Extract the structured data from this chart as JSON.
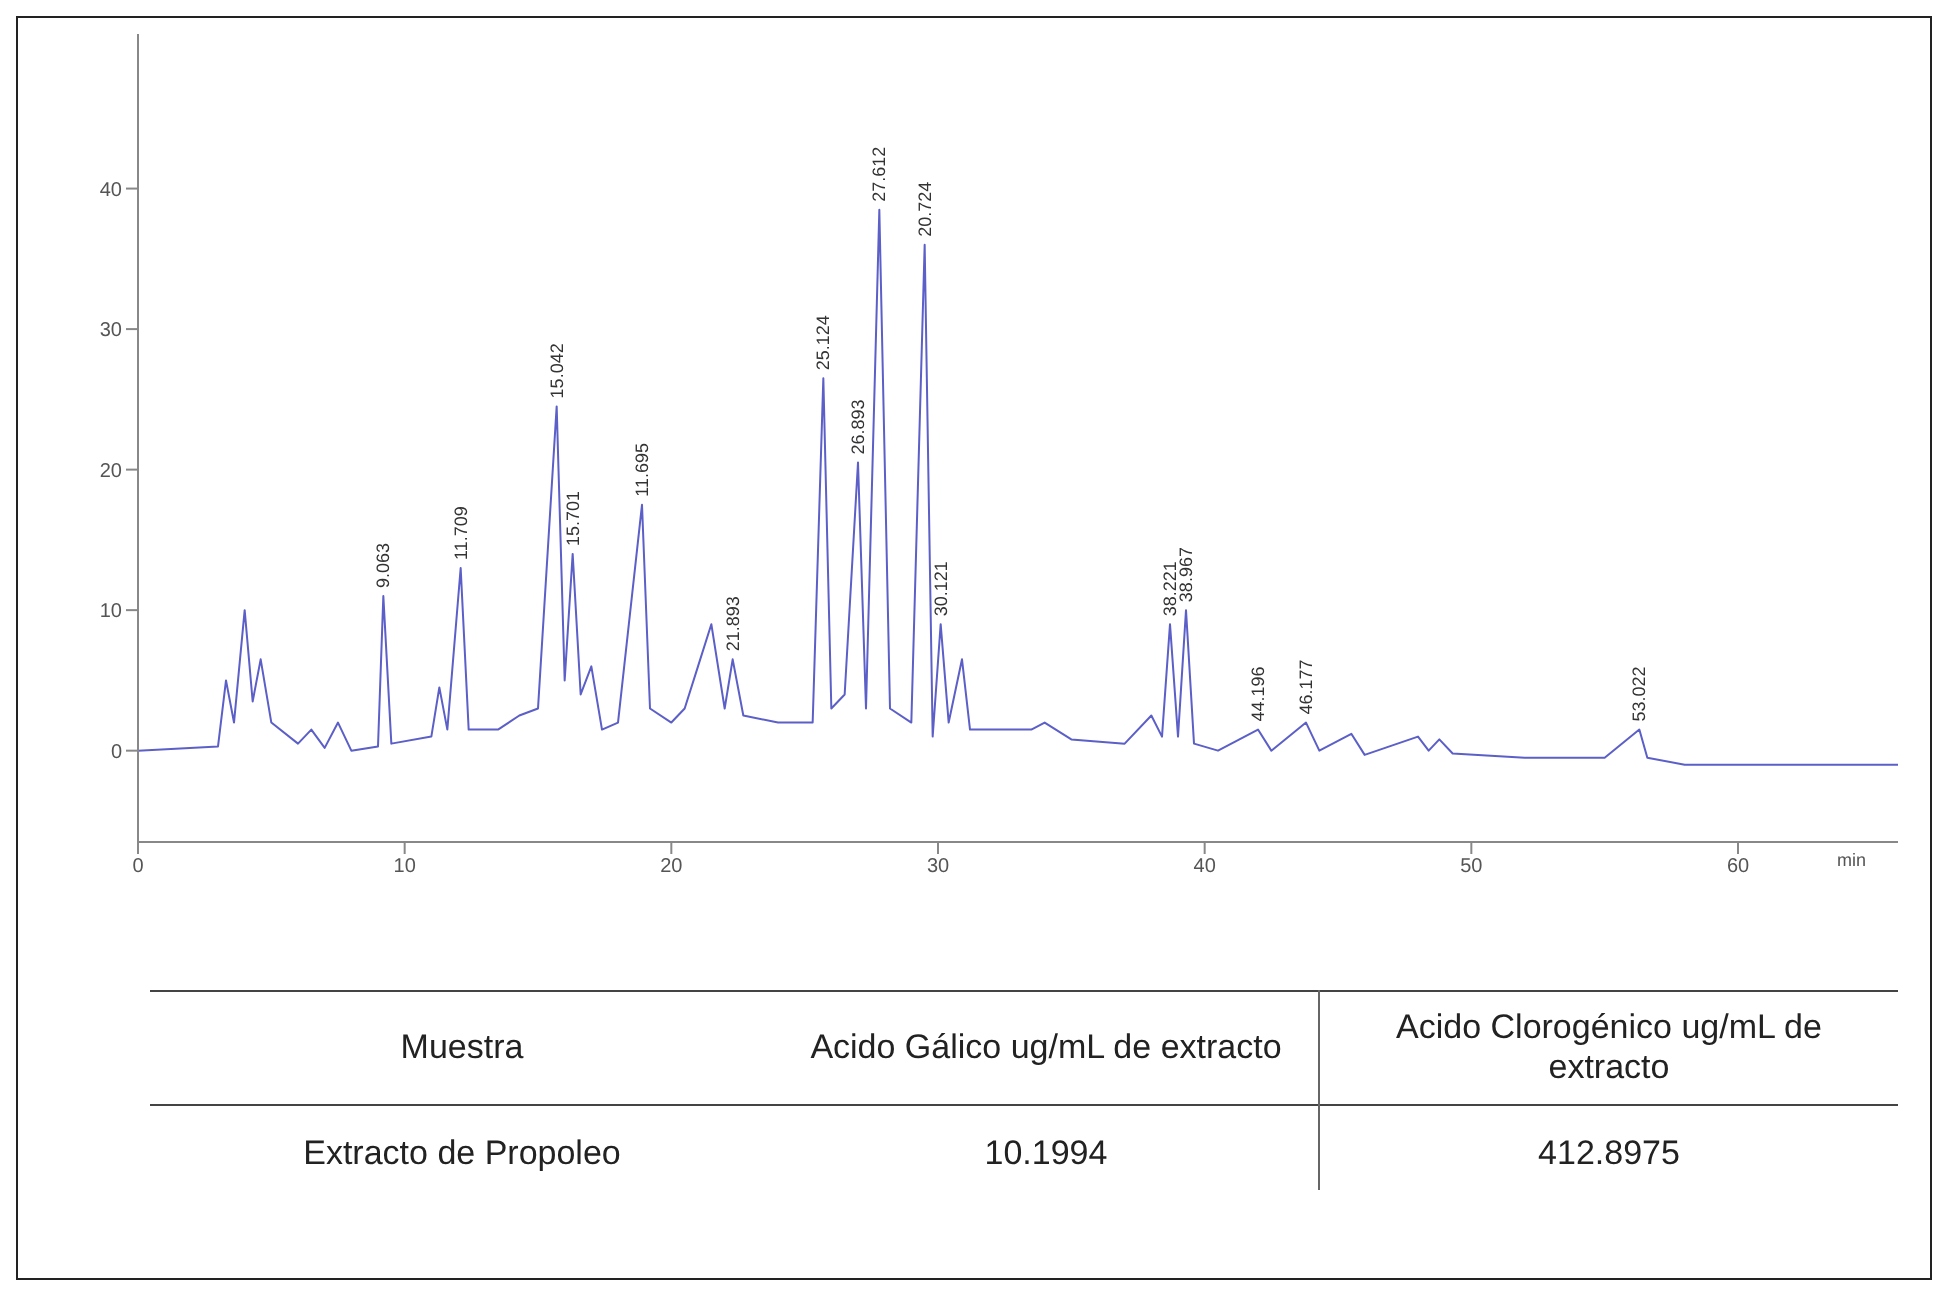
{
  "chart_data": {
    "type": "line",
    "xlabel": "min",
    "x": [
      0,
      3.0,
      3.3,
      3.6,
      4.0,
      4.3,
      4.6,
      5.0,
      6.0,
      6.5,
      7.0,
      7.5,
      8.0,
      9.0,
      9.2,
      9.5,
      11.0,
      11.3,
      11.6,
      12.1,
      12.4,
      13.5,
      14.3,
      15.0,
      15.7,
      16.0,
      16.3,
      16.6,
      17.0,
      17.4,
      18.0,
      18.9,
      19.2,
      20.0,
      20.5,
      21.0,
      21.5,
      22.0,
      22.3,
      22.7,
      24.0,
      25.3,
      25.7,
      26.0,
      26.5,
      27.0,
      27.3,
      27.8,
      28.2,
      29.0,
      29.5,
      29.8,
      30.1,
      30.4,
      30.9,
      31.2,
      32.5,
      33.5,
      34,
      35,
      37,
      38.0,
      38.4,
      38.7,
      39.0,
      39.3,
      39.6,
      40.5,
      42,
      42.5,
      43.8,
      44.3,
      45.5,
      46,
      48,
      48.4,
      48.8,
      49.3,
      52,
      55,
      56.3,
      56.6,
      58,
      66
    ],
    "series": [
      {
        "color": "#5b5fc7",
        "values": [
          0,
          0.3,
          5,
          2,
          10,
          3.5,
          6.5,
          2,
          0.5,
          1.5,
          0.2,
          2,
          0,
          0.3,
          11,
          0.5,
          1,
          4.5,
          1.5,
          13,
          1.5,
          1.5,
          2.5,
          3,
          24.5,
          5,
          14,
          4,
          6,
          1.5,
          2,
          17.5,
          3,
          2,
          3,
          6,
          9,
          3,
          6.5,
          2.5,
          2,
          2,
          26.5,
          3,
          4,
          20.5,
          3,
          38.5,
          3,
          2,
          36,
          1,
          9,
          2,
          6.5,
          1.5,
          1.5,
          1.5,
          2,
          0.8,
          0.5,
          2.5,
          1,
          9,
          1,
          10,
          0.5,
          0,
          1.5,
          0,
          2,
          0,
          1.2,
          -0.3,
          1,
          0,
          0.8,
          -0.2,
          -0.5,
          -0.5,
          1.5,
          -0.5,
          -1,
          -1
        ]
      }
    ],
    "xlim": [
      0,
      66
    ],
    "xticks": [
      0,
      10,
      20,
      30,
      40,
      50,
      60
    ],
    "ylim": [
      -6.5,
      51
    ],
    "yticks": [
      0,
      10,
      20,
      30,
      40
    ],
    "grid": false,
    "legend": false,
    "marker": "none",
    "line_style": "solid",
    "annotations": [
      "Muestra",
      "Acido Gálico ug/mL de extracto",
      "Acido Clorogénico ug/mL de extracto",
      "Extracto de Propoleo",
      "10.1994",
      "412.8975",
      {
        "text": "9.063",
        "x": 9.2,
        "y": 11
      },
      {
        "text": "11.709",
        "x": 12.1,
        "y": 13
      },
      {
        "text": "15.042",
        "x": 15.7,
        "y": 24.5
      },
      {
        "text": "15.701",
        "x": 16.3,
        "y": 14
      },
      {
        "text": "11.695",
        "x": 18.9,
        "y": 17.5
      },
      {
        "text": "21.893",
        "x": 22.3,
        "y": 6.5
      },
      {
        "text": "25.124",
        "x": 25.7,
        "y": 26.5
      },
      {
        "text": "26.893",
        "x": 27.0,
        "y": 20.5
      },
      {
        "text": "27.612",
        "x": 27.8,
        "y": 38.5
      },
      {
        "text": "20.724",
        "x": 29.5,
        "y": 36
      },
      {
        "text": "30.121",
        "x": 30.1,
        "y": 9
      },
      {
        "text": "38.221",
        "x": 38.7,
        "y": 9
      },
      {
        "text": "38.967",
        "x": 39.3,
        "y": 10
      },
      {
        "text": "44.196",
        "x": 42,
        "y": 1.5
      },
      {
        "text": "46.177",
        "x": 43.8,
        "y": 2
      },
      {
        "text": "53.022",
        "x": 56.3,
        "y": 1.5
      }
    ]
  }
}
